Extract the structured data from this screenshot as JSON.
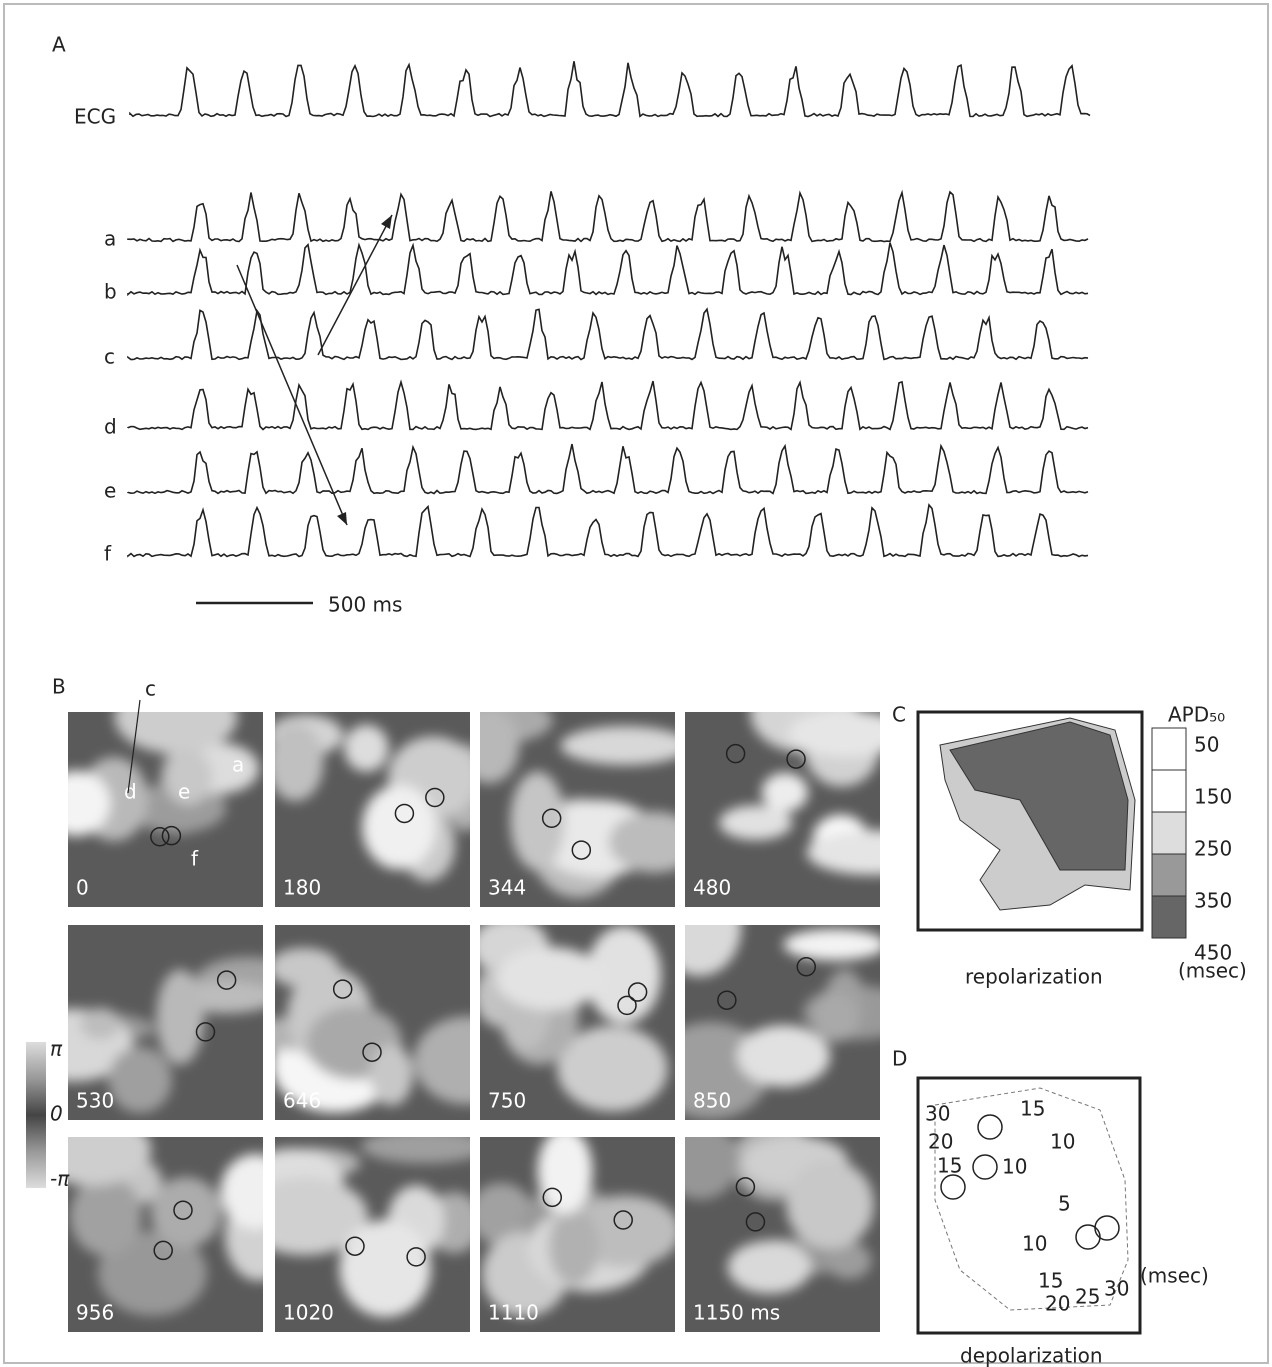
{
  "panel_a": {
    "label": "A",
    "ecg_label": "ECG",
    "trace_labels": [
      "a",
      "b",
      "c",
      "d",
      "e",
      "f"
    ],
    "scale_bar": "500 ms"
  },
  "panel_b": {
    "label": "B",
    "site_labels": [
      "c",
      "d",
      "e",
      "a",
      "f"
    ],
    "frame_times": [
      "0",
      "180",
      "344",
      "480",
      "530",
      "646",
      "750",
      "850",
      "956",
      "1020",
      "1110",
      "1150 ms"
    ],
    "phase_legend": [
      "π",
      "0",
      "-π"
    ]
  },
  "panel_c": {
    "label": "C",
    "scale_title": "APD₅₀",
    "scale_values": [
      50,
      150,
      250,
      350,
      450
    ],
    "unit": "(msec)",
    "caption": "repolarization"
  },
  "panel_d": {
    "label": "D",
    "contour_labels": [
      30,
      15,
      20,
      10,
      15,
      10,
      5,
      10,
      15,
      25,
      30,
      20
    ],
    "unit": "(msec)",
    "caption": "depolarization"
  }
}
